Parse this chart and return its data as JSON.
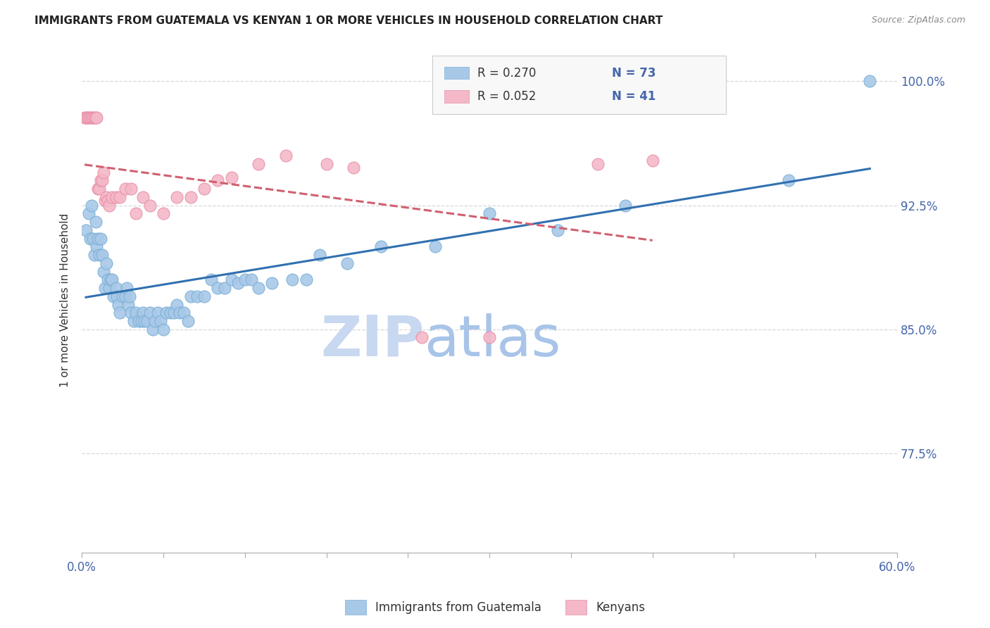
{
  "title": "IMMIGRANTS FROM GUATEMALA VS KENYAN 1 OR MORE VEHICLES IN HOUSEHOLD CORRELATION CHART",
  "source": "Source: ZipAtlas.com",
  "ylabel": "1 or more Vehicles in Household",
  "ytick_labels": [
    "100.0%",
    "92.5%",
    "85.0%",
    "77.5%"
  ],
  "ytick_values": [
    1.0,
    0.925,
    0.85,
    0.775
  ],
  "xlim": [
    0.0,
    0.6
  ],
  "ylim": [
    0.715,
    1.02
  ],
  "legend_label_blue": "Immigrants from Guatemala",
  "legend_label_pink": "Kenyans",
  "blue_color": "#a8c8e8",
  "blue_edge_color": "#7aafd4",
  "pink_color": "#f4b8c8",
  "pink_edge_color": "#e890a8",
  "trendline_blue_color": "#3070b0",
  "trendline_pink_color": "#d06070",
  "grid_color": "#d8d8d8",
  "watermark_color": "#c8d8f0",
  "blue_x": [
    0.003,
    0.005,
    0.006,
    0.007,
    0.008,
    0.009,
    0.01,
    0.011,
    0.012,
    0.013,
    0.014,
    0.015,
    0.016,
    0.017,
    0.018,
    0.019,
    0.02,
    0.021,
    0.022,
    0.023,
    0.025,
    0.026,
    0.027,
    0.028,
    0.03,
    0.032,
    0.033,
    0.034,
    0.035,
    0.036,
    0.038,
    0.04,
    0.042,
    0.044,
    0.045,
    0.046,
    0.048,
    0.05,
    0.052,
    0.054,
    0.056,
    0.058,
    0.06,
    0.062,
    0.065,
    0.068,
    0.07,
    0.072,
    0.075,
    0.078,
    0.08,
    0.085,
    0.09,
    0.095,
    0.1,
    0.105,
    0.11,
    0.115,
    0.12,
    0.125,
    0.13,
    0.14,
    0.155,
    0.165,
    0.175,
    0.195,
    0.22,
    0.26,
    0.3,
    0.35,
    0.4,
    0.52,
    0.58
  ],
  "blue_y": [
    0.91,
    0.92,
    0.905,
    0.925,
    0.905,
    0.895,
    0.915,
    0.9,
    0.905,
    0.895,
    0.905,
    0.895,
    0.885,
    0.875,
    0.89,
    0.88,
    0.875,
    0.88,
    0.88,
    0.87,
    0.875,
    0.87,
    0.865,
    0.86,
    0.87,
    0.87,
    0.875,
    0.865,
    0.87,
    0.86,
    0.855,
    0.86,
    0.855,
    0.855,
    0.86,
    0.855,
    0.855,
    0.86,
    0.85,
    0.855,
    0.86,
    0.855,
    0.85,
    0.86,
    0.86,
    0.86,
    0.865,
    0.86,
    0.86,
    0.855,
    0.87,
    0.87,
    0.87,
    0.88,
    0.875,
    0.875,
    0.88,
    0.878,
    0.88,
    0.88,
    0.875,
    0.878,
    0.88,
    0.88,
    0.895,
    0.89,
    0.9,
    0.9,
    0.92,
    0.91,
    0.925,
    0.94,
    1.0
  ],
  "pink_x": [
    0.002,
    0.003,
    0.004,
    0.005,
    0.006,
    0.007,
    0.008,
    0.009,
    0.01,
    0.011,
    0.012,
    0.013,
    0.014,
    0.015,
    0.016,
    0.017,
    0.018,
    0.019,
    0.02,
    0.022,
    0.025,
    0.028,
    0.032,
    0.036,
    0.04,
    0.045,
    0.05,
    0.06,
    0.07,
    0.08,
    0.09,
    0.1,
    0.11,
    0.13,
    0.15,
    0.18,
    0.2,
    0.25,
    0.3,
    0.38,
    0.42
  ],
  "pink_y": [
    0.978,
    0.978,
    0.978,
    0.978,
    0.978,
    0.978,
    0.978,
    0.978,
    0.978,
    0.978,
    0.935,
    0.935,
    0.94,
    0.94,
    0.945,
    0.928,
    0.93,
    0.928,
    0.925,
    0.93,
    0.93,
    0.93,
    0.935,
    0.935,
    0.92,
    0.93,
    0.925,
    0.92,
    0.93,
    0.93,
    0.935,
    0.94,
    0.942,
    0.95,
    0.955,
    0.95,
    0.948,
    0.845,
    0.845,
    0.95,
    0.952
  ]
}
